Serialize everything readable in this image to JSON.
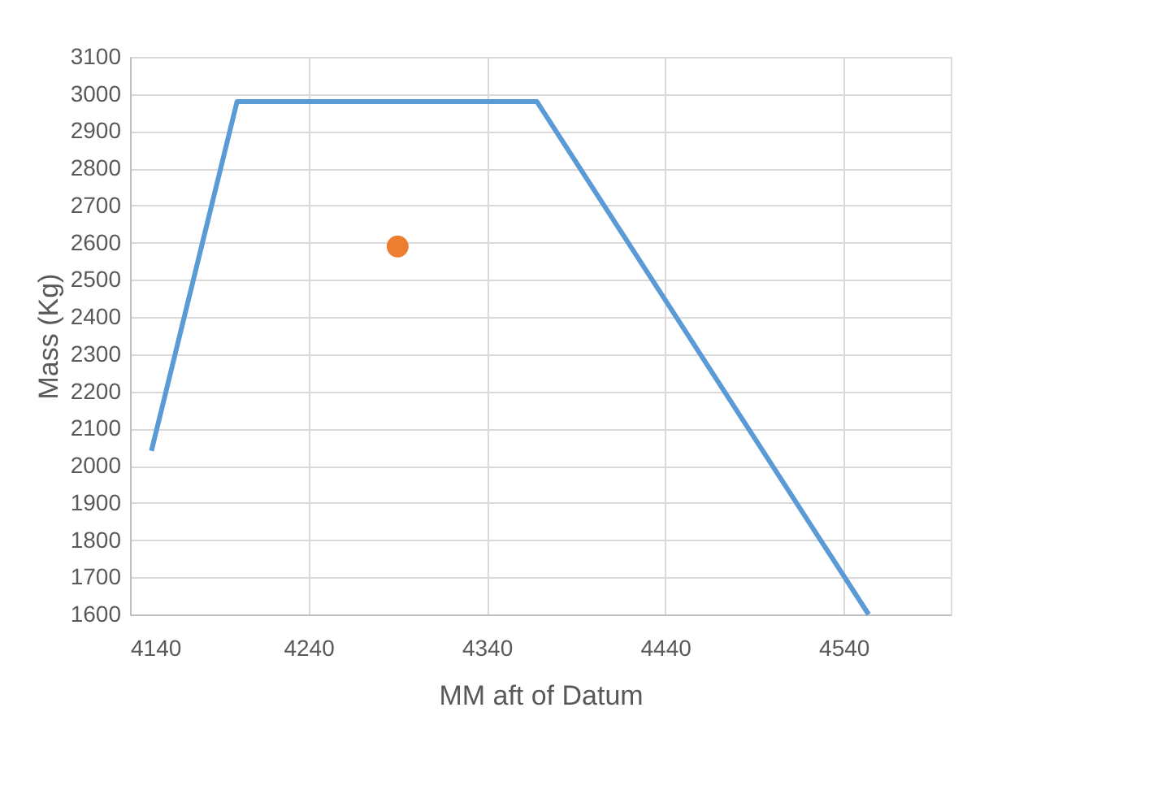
{
  "chart_data": {
    "type": "line",
    "xlabel": "MM aft of Datum",
    "ylabel": "Mass (Kg)",
    "series": [
      {
        "marker": "none",
        "color": "#5b9bd5",
        "x": [
          4152,
          4200,
          4368,
          4554
        ],
        "values": [
          2040,
          2980,
          2980,
          1600
        ]
      },
      {
        "type": "scatter",
        "marker": "circle",
        "color": "#ed7d31",
        "x": [
          4290
        ],
        "values": [
          2590
        ]
      }
    ],
    "xlim": [
      4140,
      4600
    ],
    "xticks": [
      4140,
      4240,
      4340,
      4440,
      4540
    ],
    "ylim": [
      1600,
      3100
    ],
    "yticks": [
      1600,
      1700,
      1800,
      1900,
      2000,
      2100,
      2200,
      2300,
      2400,
      2500,
      2600,
      2700,
      2800,
      2900,
      3000,
      3100
    ],
    "grid": true
  }
}
